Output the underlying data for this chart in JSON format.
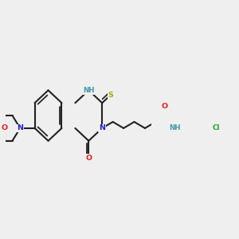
{
  "bg_color": "#efefef",
  "bond_color": "#222222",
  "bond_lw": 1.5,
  "colors": {
    "N": "#2020cc",
    "O": "#dd2020",
    "S": "#aaaa00",
    "Cl": "#20aa20",
    "NH": "#4499aa",
    "C": "#222222"
  },
  "fs": 6.8,
  "fs_small": 5.8
}
